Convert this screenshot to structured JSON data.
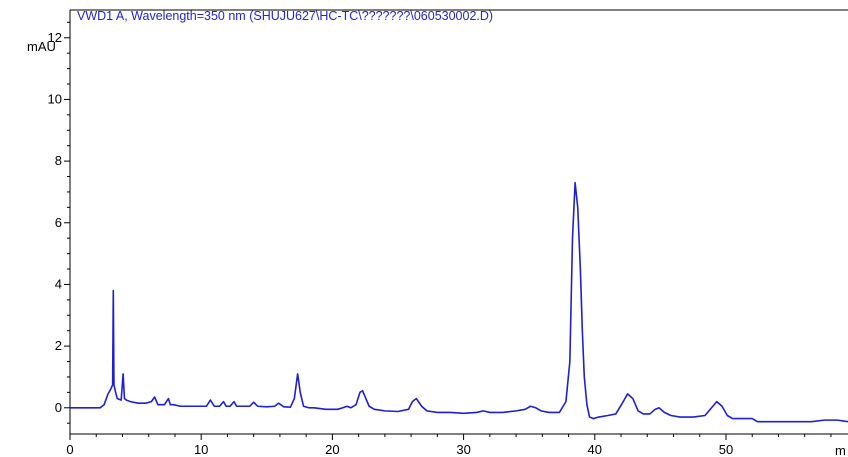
{
  "chart_data": {
    "type": "line",
    "title": "VWD1 A, Wavelength=350 nm (SHUJU627\\HC-TC\\???????\\060530002.D)",
    "ylabel": "mAU",
    "xlabel": "m",
    "xlim": [
      0,
      59.3
    ],
    "ylim": [
      -0.85,
      12.9
    ],
    "grid": false,
    "line_color": "#1f1fd6",
    "axis_color": "#000000",
    "y_ticks": [
      {
        "value": 0,
        "label": "0"
      },
      {
        "value": 2,
        "label": "2"
      },
      {
        "value": 4,
        "label": "4"
      },
      {
        "value": 6,
        "label": "6"
      },
      {
        "value": 8,
        "label": "8"
      },
      {
        "value": 10,
        "label": "10"
      },
      {
        "value": 12,
        "label": "12"
      }
    ],
    "x_ticks": [
      {
        "value": 0,
        "label": "0"
      },
      {
        "value": 10,
        "label": "10"
      },
      {
        "value": 20,
        "label": "20"
      },
      {
        "value": 30,
        "label": "30"
      },
      {
        "value": 40,
        "label": "40"
      },
      {
        "value": 50,
        "label": "50"
      }
    ],
    "series": [
      {
        "x": [
          0,
          2.3,
          2.6,
          2.9,
          3.1,
          3.25,
          3.3,
          3.35,
          3.45,
          3.6,
          3.9,
          4.05,
          4.15,
          4.3,
          4.6,
          5.2,
          5.8,
          6.2,
          6.45,
          6.7,
          7.2,
          7.5,
          7.65,
          7.9,
          8.4,
          9.5,
          10.4,
          10.7,
          11.0,
          11.4,
          11.7,
          11.9,
          12.2,
          12.5,
          12.7,
          12.9,
          13.3,
          13.7,
          14.0,
          14.3,
          15.0,
          15.6,
          15.9,
          16.3,
          16.8,
          17.1,
          17.35,
          17.55,
          17.8,
          18.2,
          18.6,
          19.5,
          20.4,
          20.8,
          21.1,
          21.4,
          21.8,
          22.1,
          22.3,
          22.55,
          22.8,
          23.2,
          24.0,
          25.0,
          25.8,
          26.1,
          26.4,
          26.8,
          27.2,
          28.0,
          29.0,
          30.0,
          31.0,
          31.5,
          32.0,
          33.0,
          34.0,
          34.7,
          35.1,
          35.5,
          35.9,
          36.5,
          37.3,
          37.8,
          38.1,
          38.3,
          38.5,
          38.7,
          38.9,
          39.05,
          39.2,
          39.4,
          39.6,
          39.9,
          40.3,
          41.0,
          41.6,
          42.1,
          42.5,
          42.9,
          43.3,
          43.7,
          44.2,
          44.6,
          44.9,
          45.3,
          45.8,
          46.5,
          47.5,
          48.4,
          48.9,
          49.3,
          49.7,
          50.1,
          50.5,
          51.0,
          52.0,
          52.4,
          53.5,
          55.0,
          56.5,
          57.5,
          58.5,
          59.3
        ],
        "y": [
          0,
          0,
          0.1,
          0.45,
          0.6,
          0.75,
          3.8,
          0.75,
          0.55,
          0.3,
          0.25,
          1.1,
          0.3,
          0.25,
          0.2,
          0.15,
          0.15,
          0.2,
          0.35,
          0.1,
          0.1,
          0.3,
          0.1,
          0.1,
          0.05,
          0.05,
          0.05,
          0.25,
          0.05,
          0.05,
          0.2,
          0.05,
          0.05,
          0.2,
          0.05,
          0.05,
          0.05,
          0.05,
          0.18,
          0.05,
          0.03,
          0.05,
          0.15,
          0.03,
          0.02,
          0.3,
          1.1,
          0.5,
          0.05,
          0.0,
          0.0,
          -0.05,
          -0.05,
          0.0,
          0.05,
          0.0,
          0.1,
          0.5,
          0.55,
          0.3,
          0.05,
          -0.05,
          -0.1,
          -0.12,
          -0.05,
          0.2,
          0.3,
          0.05,
          -0.1,
          -0.15,
          -0.15,
          -0.18,
          -0.15,
          -0.1,
          -0.15,
          -0.15,
          -0.1,
          -0.05,
          0.05,
          0.0,
          -0.1,
          -0.15,
          -0.15,
          0.2,
          1.5,
          5.5,
          7.3,
          6.5,
          4.5,
          2.5,
          1.0,
          0.1,
          -0.3,
          -0.35,
          -0.3,
          -0.25,
          -0.2,
          0.15,
          0.45,
          0.3,
          -0.1,
          -0.2,
          -0.2,
          -0.05,
          0.0,
          -0.15,
          -0.25,
          -0.3,
          -0.3,
          -0.25,
          0.0,
          0.2,
          0.05,
          -0.25,
          -0.35,
          -0.35,
          -0.35,
          -0.45,
          -0.45,
          -0.45,
          -0.45,
          -0.4,
          -0.4,
          -0.45
        ]
      }
    ]
  }
}
